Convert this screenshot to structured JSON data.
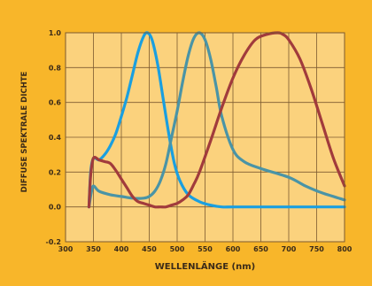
{
  "colors": {
    "panel": "#f8b62a",
    "plot_bg": "#fbd27d",
    "grid": "#7c5a30",
    "text": "#3a2a18",
    "backdrop": "#d2d0cb"
  },
  "chart_data": {
    "type": "line",
    "title": "",
    "xlabel": "WELLENLÄNGE (nm)",
    "ylabel": "DIFFUSE SPEKTRALE DICHTE",
    "xlim": [
      300,
      800
    ],
    "ylim": [
      -0.2,
      1.0
    ],
    "xticks": [
      300,
      350,
      400,
      450,
      500,
      550,
      600,
      650,
      700,
      750,
      800
    ],
    "yticks": [
      -0.2,
      0.0,
      0.2,
      0.4,
      0.6,
      0.8,
      1.0
    ],
    "xtick_labels": [
      "300",
      "350",
      "400",
      "450",
      "500",
      "550",
      "600",
      "650",
      "700",
      "750",
      "800"
    ],
    "ytick_labels": [
      "-0.2",
      "0.0",
      "0.2",
      "0.4",
      "0.6",
      "0.8",
      "1.0"
    ],
    "grid": true,
    "series": [
      {
        "color": "#1a9fe0",
        "x": [
          342,
          345,
          350,
          360,
          370,
          380,
          390,
          400,
          410,
          420,
          430,
          440,
          447,
          455,
          465,
          475,
          485,
          495,
          505,
          520,
          540,
          560,
          580,
          600,
          650,
          700,
          750,
          800
        ],
        "y": [
          0.0,
          0.2,
          0.28,
          0.27,
          0.3,
          0.35,
          0.42,
          0.52,
          0.63,
          0.76,
          0.89,
          0.98,
          1.0,
          0.96,
          0.82,
          0.62,
          0.42,
          0.25,
          0.15,
          0.07,
          0.03,
          0.01,
          0.0,
          0.0,
          0.0,
          0.0,
          0.0,
          0.0
        ]
      },
      {
        "color": "#4a94a6",
        "x": [
          342,
          346,
          350,
          360,
          380,
          400,
          420,
          440,
          450,
          460,
          470,
          480,
          490,
          500,
          510,
          520,
          530,
          540,
          550,
          560,
          570,
          580,
          600,
          620,
          650,
          700,
          730,
          760,
          800
        ],
        "y": [
          0.0,
          0.08,
          0.12,
          0.09,
          0.07,
          0.06,
          0.05,
          0.05,
          0.06,
          0.09,
          0.15,
          0.25,
          0.4,
          0.55,
          0.72,
          0.87,
          0.97,
          1.0,
          0.96,
          0.85,
          0.69,
          0.52,
          0.33,
          0.26,
          0.22,
          0.17,
          0.12,
          0.08,
          0.04
        ]
      },
      {
        "color": "#a13b3c",
        "x": [
          342,
          345,
          350,
          360,
          370,
          380,
          390,
          400,
          410,
          420,
          430,
          440,
          450,
          460,
          470,
          480,
          490,
          500,
          510,
          520,
          530,
          540,
          560,
          580,
          600,
          620,
          640,
          660,
          680,
          690,
          700,
          720,
          740,
          760,
          780,
          800
        ],
        "y": [
          0.0,
          0.18,
          0.28,
          0.27,
          0.26,
          0.25,
          0.21,
          0.16,
          0.11,
          0.06,
          0.03,
          0.02,
          0.01,
          0.0,
          0.0,
          0.0,
          0.01,
          0.02,
          0.04,
          0.07,
          0.13,
          0.2,
          0.38,
          0.57,
          0.74,
          0.87,
          0.96,
          0.99,
          1.0,
          0.99,
          0.96,
          0.85,
          0.68,
          0.48,
          0.28,
          0.12
        ]
      }
    ]
  }
}
